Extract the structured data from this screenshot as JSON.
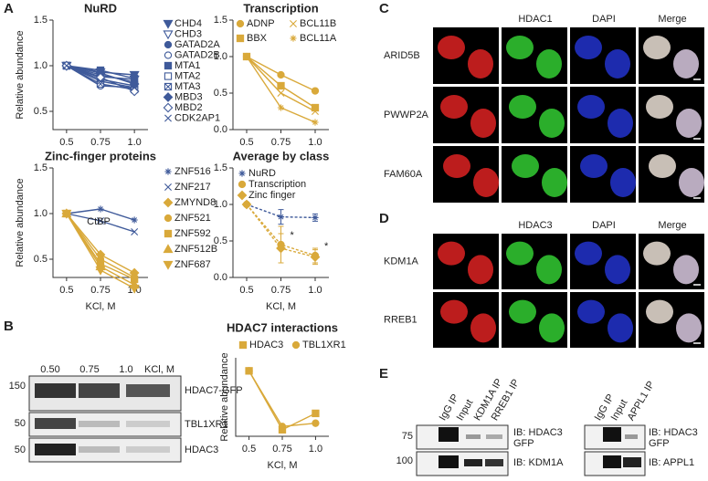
{
  "panel_labels": [
    "A",
    "B",
    "C",
    "D",
    "E"
  ],
  "chart_data": [
    {
      "type": "line",
      "title": "NuRD",
      "ylabel": "Relative abundance",
      "x": [
        0.5,
        0.75,
        1
      ],
      "xlim": [
        0.4,
        1.1
      ],
      "xticks": [
        0.5,
        0.75,
        {
          "value": 1,
          "label": "1.0"
        }
      ],
      "ylim": [
        0.3,
        1.5
      ],
      "yticks": [
        0.5,
        {
          "value": 1,
          "label": "1.0"
        },
        {
          "value": 1.5,
          "label": "1.5"
        }
      ],
      "legend": "right",
      "series": [
        {
          "name": "CHD4",
          "color": "#3f5a9a",
          "marker": "triangle-down",
          "values": [
            1,
            0.93,
            0.9
          ]
        },
        {
          "name": "CHD3",
          "color": "#3f5a9a",
          "marker": "triangle-down-open",
          "values": [
            1,
            0.88,
            0.85
          ]
        },
        {
          "name": "GATAD2A",
          "color": "#3f5a9a",
          "marker": "circle",
          "values": [
            1,
            0.9,
            0.82
          ]
        },
        {
          "name": "GATAD2B",
          "color": "#3f5a9a",
          "marker": "circle-open",
          "values": [
            1,
            0.78,
            0.76
          ]
        },
        {
          "name": "MTA1",
          "color": "#3f5a9a",
          "marker": "square",
          "values": [
            1,
            0.95,
            0.86
          ]
        },
        {
          "name": "MTA2",
          "color": "#3f5a9a",
          "marker": "square-open",
          "values": [
            1,
            0.85,
            0.78
          ]
        },
        {
          "name": "MTA3",
          "color": "#3f5a9a",
          "marker": "x-box",
          "values": [
            1,
            0.8,
            0.74
          ]
        },
        {
          "name": "MBD3",
          "color": "#3f5a9a",
          "marker": "diamond",
          "values": [
            1,
            0.92,
            0.8
          ]
        },
        {
          "name": "MBD2",
          "color": "#3f5a9a",
          "marker": "diamond-open",
          "values": [
            1,
            0.87,
            0.72
          ]
        },
        {
          "name": "CDK2AP1",
          "color": "#3f5a9a",
          "marker": "cross",
          "values": [
            1,
            0.83,
            0.76
          ]
        }
      ]
    },
    {
      "type": "line",
      "title": "Transcription",
      "x": [
        0.5,
        0.75,
        1
      ],
      "xlim": [
        0.4,
        1.1
      ],
      "xticks": [
        0.5,
        0.75,
        {
          "value": 1,
          "label": "1.0"
        }
      ],
      "ylim": [
        0,
        1.5
      ],
      "yticks": [
        {
          "value": 0,
          "label": "0.0"
        },
        0.5,
        {
          "value": 1,
          "label": "1.0"
        },
        {
          "value": 1.5,
          "label": "1.5"
        }
      ],
      "legend": "top",
      "series": [
        {
          "name": "ADNP",
          "color": "#d9a93a",
          "marker": "circle",
          "values": [
            1,
            0.75,
            0.53
          ]
        },
        {
          "name": "BCL11B",
          "color": "#d9a93a",
          "marker": "cross",
          "values": [
            1,
            0.5,
            0.25
          ]
        },
        {
          "name": "BBX",
          "color": "#d9a93a",
          "marker": "square",
          "values": [
            1,
            0.6,
            0.3
          ]
        },
        {
          "name": "BCL11A",
          "color": "#d9a93a",
          "marker": "star",
          "values": [
            1,
            0.3,
            0.1
          ]
        }
      ]
    },
    {
      "type": "line",
      "title": "Zinc-finger proteins",
      "ylabel": "Relative abundance",
      "xlabel": "KCl, M",
      "annotation": "CtBP",
      "x": [
        0.5,
        0.75,
        1
      ],
      "xlim": [
        0.4,
        1.1
      ],
      "xticks": [
        0.5,
        0.75,
        {
          "value": 1,
          "label": "1.0"
        }
      ],
      "ylim": [
        0.3,
        1.5
      ],
      "yticks": [
        0.5,
        {
          "value": 1,
          "label": "1.0"
        },
        {
          "value": 1.5,
          "label": "1.5"
        }
      ],
      "legend": "right",
      "series": [
        {
          "name": "ZNF516",
          "color": "#3f5a9a",
          "marker": "star",
          "values": [
            1,
            1.05,
            0.93
          ]
        },
        {
          "name": "ZNF217",
          "color": "#3f5a9a",
          "marker": "cross",
          "values": [
            1,
            0.92,
            0.8
          ]
        },
        {
          "name": "ZMYND8",
          "color": "#d9a93a",
          "marker": "diamond",
          "values": [
            1,
            0.55,
            0.35
          ]
        },
        {
          "name": "ZNF521",
          "color": "#d9a93a",
          "marker": "circle",
          "values": [
            1,
            0.5,
            0.3
          ]
        },
        {
          "name": "ZNF592",
          "color": "#d9a93a",
          "marker": "square",
          "values": [
            1,
            0.45,
            0.28
          ]
        },
        {
          "name": "ZNF512B",
          "color": "#d9a93a",
          "marker": "triangle",
          "values": [
            1,
            0.42,
            0.22
          ]
        },
        {
          "name": "ZNF687",
          "color": "#d9a93a",
          "marker": "triangle-down",
          "values": [
            1,
            0.38,
            0.18
          ]
        }
      ]
    },
    {
      "type": "line",
      "title": "Average by class",
      "xlabel": "KCl, M",
      "annotations": [
        "*",
        "*"
      ],
      "x": [
        0.5,
        0.75,
        1
      ],
      "xlim": [
        0.4,
        1.1
      ],
      "xticks": [
        0.5,
        0.75,
        {
          "value": 1,
          "label": "1.0"
        }
      ],
      "ylim": [
        0,
        1.5
      ],
      "yticks": [
        {
          "value": 0,
          "label": "0.0"
        },
        0.5,
        {
          "value": 1,
          "label": "1.0"
        },
        {
          "value": 1.5,
          "label": "1.5"
        }
      ],
      "legend": "upper left",
      "series": [
        {
          "name": "NuRD",
          "color": "#3f5a9a",
          "marker": "star",
          "dash": true,
          "values": [
            1,
            0.83,
            0.82
          ],
          "errors": [
            0,
            0.1,
            0.05
          ]
        },
        {
          "name": "Transcription",
          "color": "#d9a93a",
          "marker": "circle",
          "dash": true,
          "values": [
            1,
            0.45,
            0.3
          ],
          "errors": [
            0,
            0.25,
            0.1
          ]
        },
        {
          "name": "Zinc finger",
          "color": "#d9a93a",
          "marker": "diamond",
          "dash": true,
          "values": [
            1,
            0.4,
            0.28
          ],
          "errors": [
            0,
            0.2,
            0.1
          ]
        }
      ]
    },
    {
      "type": "line",
      "title": "HDAC7 interactions",
      "ylabel": "Relative abundance",
      "xlabel": "KCl, M",
      "x": [
        0.5,
        0.75,
        1
      ],
      "xlim": [
        0.4,
        1.1
      ],
      "xticks": [
        0.5,
        0.75,
        {
          "value": 1,
          "label": "1.0"
        }
      ],
      "ylim": [
        0,
        1.2
      ],
      "legend": "top",
      "series": [
        {
          "name": "HDAC3",
          "color": "#d9a93a",
          "marker": "square",
          "values": [
            1,
            0.1,
            0.35
          ]
        },
        {
          "name": "TBL1XR1",
          "color": "#d9a93a",
          "marker": "circle",
          "values": [
            1,
            0.15,
            0.2
          ]
        }
      ]
    }
  ],
  "blot_b": {
    "lanes": [
      "0.50",
      "0.75",
      "1.0"
    ],
    "lane_unit": "KCl, M",
    "markers": [
      "150",
      "50",
      "50"
    ],
    "bands": [
      "HDAC7-GFP",
      "TBL1XR1",
      "HDAC3"
    ]
  },
  "panel_c": {
    "columns": [
      "HDAC1",
      "DAPI",
      "Merge"
    ],
    "rows": [
      "ARID5B",
      "PWWP2A",
      "FAM60A"
    ]
  },
  "panel_d": {
    "columns": [
      "HDAC3",
      "DAPI",
      "Merge"
    ],
    "rows": [
      "KDM1A",
      "RREB1"
    ]
  },
  "panel_e": {
    "left_lanes": [
      "IgG IP",
      "Input",
      "KDM1A IP",
      "RREB1 IP"
    ],
    "right_lanes": [
      "IgG IP",
      "Input",
      "APPL1 IP"
    ],
    "markers": [
      "75",
      "100"
    ],
    "left_ib": [
      {
        "label": "IB: HDAC3",
        "sub": "GFP"
      },
      {
        "label": "IB: KDM1A"
      }
    ],
    "right_ib": [
      {
        "label": "IB: HDAC3",
        "sub": "GFP"
      },
      {
        "label": "IB: APPL1"
      }
    ]
  }
}
